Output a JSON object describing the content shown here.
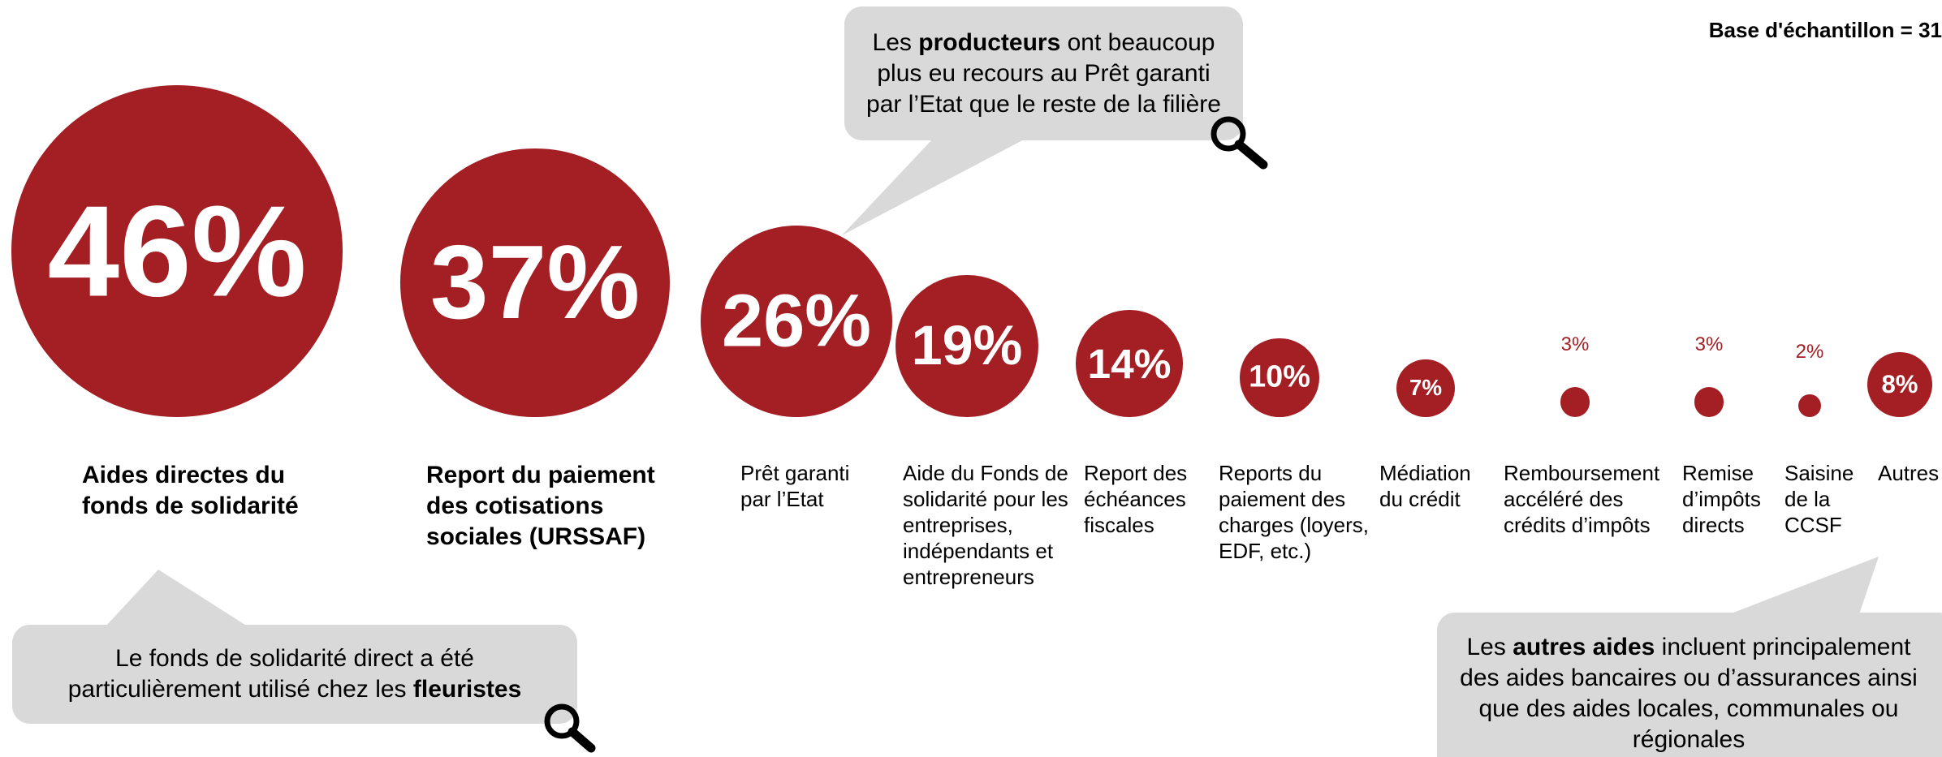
{
  "chart_data": {
    "type": "bubble",
    "note": "Base d'échantillon = 31",
    "categories": [
      "Aides directes du fonds de solidarité",
      "Report du paiement des cotisations sociales (URSSAF)",
      "Prêt garanti par l’Etat",
      "Aide du Fonds de solidarité pour les entreprises, indépendants et entrepreneurs",
      "Report des échéances fiscales",
      "Reports du paiement des charges (loyers, EDF, etc.)",
      "Médiation du crédit",
      "Remboursement accéléré des crédits d’impôts",
      "Remise d’impôts directs",
      "Saisine de la CCSF",
      "Autres"
    ],
    "values": [
      46,
      37,
      26,
      19,
      14,
      10,
      7,
      3,
      3,
      2,
      8
    ],
    "value_labels": [
      "46%",
      "37%",
      "26%",
      "19%",
      "14%",
      "10%",
      "7%",
      "3%",
      "3%",
      "2%",
      "8%"
    ],
    "bold": [
      true,
      true,
      false,
      false,
      false,
      false,
      false,
      false,
      false,
      false,
      false
    ],
    "color": "#a31f24",
    "annotations": [
      {
        "parts": [
          {
            "text": "Les "
          },
          {
            "text": "producteurs",
            "bold": true
          },
          {
            "text": " ont beaucoup plus eu recours au Prêt garanti par l’Etat que le reste de la filière"
          }
        ]
      },
      {
        "parts": [
          {
            "text": "Le fonds de solidarité direct a été particulièrement utilisé chez les "
          },
          {
            "text": "fleuristes",
            "bold": true
          }
        ]
      },
      {
        "parts": [
          {
            "text": "Les "
          },
          {
            "text": "autres aides",
            "bold": true
          },
          {
            "text": " incluent principalement des aides bancaires ou d’assurances ainsi que des aides locales, communales ou régionales"
          }
        ]
      }
    ]
  }
}
